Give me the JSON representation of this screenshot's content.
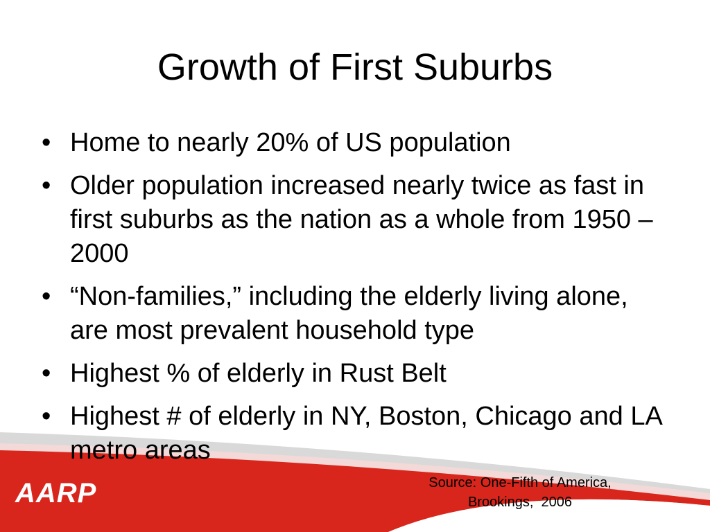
{
  "title": "Growth of First Suburbs",
  "bullets": [
    "Home to nearly 20% of US population",
    "Older population increased nearly twice as fast in first suburbs as the nation as a whole from 1950 – 2000",
    "“Non-families,” including the elderly living alone, are most prevalent household type",
    "Highest % of elderly in Rust Belt",
    "Highest # of elderly in NY, Boston, Chicago and LA metro areas"
  ],
  "source": [
    "Source: One-Fifth of America,",
    "Brookings,  2006"
  ],
  "logo": "AARP"
}
